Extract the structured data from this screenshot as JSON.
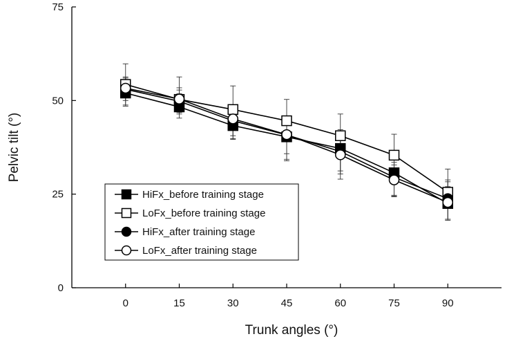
{
  "chart_data": {
    "type": "line",
    "title": "",
    "xlabel": "Trunk angles (°)",
    "ylabel": "Pelvic tilt (°)",
    "x": [
      0,
      15,
      30,
      45,
      60,
      75,
      90
    ],
    "xlim": [
      -15,
      105
    ],
    "ylim": [
      0,
      75
    ],
    "x_ticks": [
      "0",
      "15",
      "30",
      "45",
      "60",
      "75",
      "90"
    ],
    "y_ticks": [
      "0",
      "25",
      "50",
      "75"
    ],
    "legend_position": "bottom-left",
    "series": [
      {
        "name": "HiFx_before training stage",
        "marker": "square",
        "fill": "#000000",
        "values": [
          52.0,
          48.3,
          43.3,
          40.3,
          37.2,
          30.7,
          22.5
        ],
        "err_upper": [
          3.5,
          3.5,
          3.5,
          5.0,
          5.0,
          6.0,
          4.5
        ],
        "err_lower": [
          3.5,
          3.0,
          3.5,
          6.0,
          6.0,
          6.0,
          4.5
        ]
      },
      {
        "name": "LoFx_before training stage",
        "marker": "square",
        "fill": "#ffffff",
        "values": [
          54.3,
          50.3,
          47.6,
          44.6,
          40.6,
          35.4,
          25.5
        ],
        "err_upper": [
          5.5,
          6.0,
          6.3,
          5.7,
          5.8,
          5.6,
          6.2
        ],
        "err_lower": [
          5.5,
          4.0,
          6.3,
          10.0,
          9.0,
          10.0,
          7.0
        ],
        "draw_error_below": false
      },
      {
        "name": "HiFx_after training stage",
        "marker": "circle",
        "fill": "#000000",
        "values": [
          53.0,
          49.8,
          44.6,
          40.8,
          36.4,
          29.5,
          23.8
        ],
        "err_upper": [
          3.0,
          3.0,
          3.0,
          4.5,
          5.0,
          4.0,
          5.0
        ],
        "err_lower": [
          3.0,
          3.0,
          4.0,
          5.0,
          6.0,
          5.0,
          5.5
        ]
      },
      {
        "name": "LoFx_after training stage",
        "marker": "circle",
        "fill": "#ffffff",
        "values": [
          53.3,
          50.4,
          45.1,
          40.9,
          35.5,
          28.8,
          22.8
        ],
        "err_upper": [
          3.0,
          3.0,
          3.5,
          4.5,
          5.0,
          4.0,
          5.5
        ],
        "err_lower": [
          4.5,
          4.0,
          5.5,
          7.0,
          6.5,
          4.5,
          4.5
        ]
      }
    ]
  }
}
